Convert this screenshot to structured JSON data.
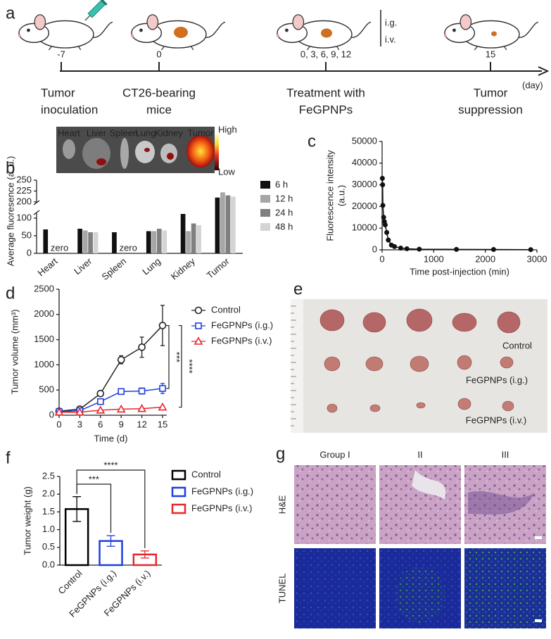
{
  "timeline": {
    "panel": "a",
    "routes": [
      "i.g.",
      "i.v."
    ],
    "unit": "(day)",
    "points": [
      {
        "label": "-7",
        "caption": [
          "Tumor",
          "inoculation"
        ]
      },
      {
        "label": "0",
        "caption": [
          "CT26-bearing",
          "mice"
        ]
      },
      {
        "label": "0, 3, 6, 9, 12",
        "caption": [
          "Treatment with",
          "FeGPNPs"
        ]
      },
      {
        "label": "15",
        "caption": [
          "Tumor",
          "suppression"
        ]
      }
    ]
  },
  "chart_data": [
    {
      "panel": "b",
      "type": "bar",
      "ylabel": "Average fluoresence (a. u.)",
      "categories": [
        "Heart",
        "Liver",
        "Spleen",
        "Lung",
        "Kidney",
        "Tumor"
      ],
      "series": [
        {
          "name": "6 h",
          "color": "#111111",
          "values": [
            68,
            70,
            60,
            63,
            112,
            210
          ]
        },
        {
          "name": "12 h",
          "color": "#a6a6a6",
          "values": [
            0,
            65,
            0,
            63,
            63,
            222
          ]
        },
        {
          "name": "24 h",
          "color": "#7f7f7f",
          "values": [
            0,
            60,
            0,
            70,
            85,
            215
          ]
        },
        {
          "name": "48 h",
          "color": "#d4d4d4",
          "values": [
            0,
            60,
            0,
            65,
            80,
            212
          ]
        }
      ],
      "ylim": [
        0,
        250
      ],
      "ybreak": [
        120,
        195
      ],
      "yticks": [
        0,
        50,
        100,
        200,
        225,
        250
      ],
      "annotations": [
        "zero",
        "zero"
      ],
      "inset": {
        "organs": [
          "Heart",
          "Liver",
          "Spleen",
          "Lung",
          "Kidney",
          "Tumor"
        ],
        "scale": [
          "High",
          "Low"
        ]
      }
    },
    {
      "panel": "c",
      "type": "line",
      "xlabel": "Time post-injection (min)",
      "ylabel": [
        "Fluorescence intensity",
        "(a.u.)"
      ],
      "color": "#111111",
      "x": [
        5,
        10,
        15,
        30,
        45,
        60,
        90,
        120,
        180,
        240,
        360,
        480,
        720,
        1440,
        2160,
        2880
      ],
      "values": [
        33000,
        30000,
        20500,
        15000,
        13000,
        11500,
        8000,
        4500,
        2200,
        1500,
        800,
        500,
        300,
        200,
        150,
        100
      ],
      "xlim": [
        0,
        3000
      ],
      "ylim": [
        0,
        50000
      ],
      "xticks": [
        0,
        1000,
        2000,
        3000
      ],
      "yticks": [
        0,
        10000,
        20000,
        30000,
        40000,
        50000
      ]
    },
    {
      "panel": "d",
      "type": "line",
      "xlabel": "Time (d)",
      "ylabel": "Tumor volume (mm³)",
      "x": [
        0,
        3,
        6,
        9,
        12,
        15
      ],
      "series": [
        {
          "name": "Control",
          "color": "#222222",
          "marker": "circle",
          "values": [
            80,
            120,
            430,
            1100,
            1350,
            1780
          ],
          "errors": [
            20,
            30,
            40,
            80,
            200,
            400
          ]
        },
        {
          "name": "FeGPNPs (i.g.)",
          "color": "#1f3fe0",
          "marker": "square",
          "values": [
            70,
            90,
            270,
            470,
            480,
            530
          ],
          "errors": [
            15,
            20,
            30,
            50,
            60,
            100
          ]
        },
        {
          "name": "FeGPNPs (i.v.)",
          "color": "#e8262b",
          "marker": "triangle",
          "values": [
            60,
            60,
            100,
            120,
            130,
            160
          ],
          "errors": [
            10,
            10,
            15,
            15,
            20,
            20
          ]
        }
      ],
      "xlim": [
        0,
        15
      ],
      "ylim": [
        0,
        2500
      ],
      "xticks": [
        0,
        3,
        6,
        9,
        12,
        15
      ],
      "yticks": [
        0,
        500,
        1000,
        1500,
        2000,
        2500
      ],
      "annotations": [
        "***",
        "****"
      ]
    },
    {
      "panel": "f",
      "type": "bar",
      "ylabel": "Tumor weight (g)",
      "categories": [
        "Control",
        "FeGPNPs (i.g.)",
        "FeGPNPs (i.v.)"
      ],
      "values": [
        1.58,
        0.68,
        0.3
      ],
      "errors": [
        0.35,
        0.15,
        0.1
      ],
      "colors": [
        "#000000",
        "#1f3fe0",
        "#e8262b"
      ],
      "ylim": [
        0,
        2.5
      ],
      "yticks": [
        {
          "value": 0,
          "label": "0.0"
        },
        0.5,
        {
          "value": 1,
          "label": "1.0"
        },
        1.5,
        {
          "value": 2,
          "label": "2.0"
        },
        2.5
      ],
      "annotations": [
        "***",
        "****"
      ]
    }
  ],
  "photos": {
    "panel": "e",
    "labels": [
      "Control",
      "FeGPNPs (i.g.)",
      "FeGPNPs (i.v.)"
    ]
  },
  "histology": {
    "panel": "g",
    "columns": [
      "Group I",
      "II",
      "III"
    ],
    "rows": [
      "H&E",
      "TUNEL"
    ]
  }
}
